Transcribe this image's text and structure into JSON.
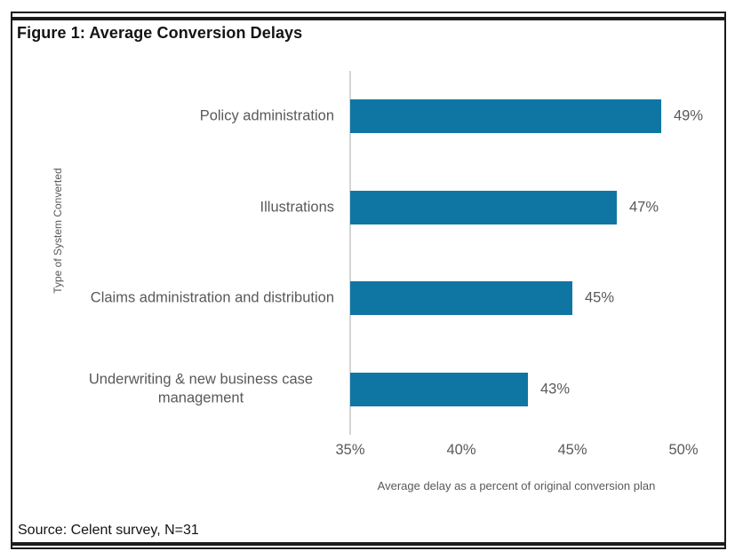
{
  "figure": {
    "title": "Figure 1: Average Conversion Delays",
    "source": "Source: Celent survey, N=31"
  },
  "chart_data": {
    "type": "bar",
    "orientation": "horizontal",
    "title": "Figure 1: Average Conversion Delays",
    "categories": [
      "Policy administration",
      "Illustrations",
      "Claims administration and distribution",
      "Underwriting & new business case management"
    ],
    "values": [
      49,
      47,
      45,
      43
    ],
    "value_labels": [
      "49%",
      "47%",
      "45%",
      "43%"
    ],
    "xlabel": "Average delay as a percent of original conversion plan",
    "ylabel": "Type of System Converted",
    "xlim": [
      35,
      50
    ],
    "xticks": [
      35,
      40,
      45,
      50
    ],
    "xtick_labels": [
      "35%",
      "40%",
      "45%",
      "50%"
    ],
    "grid": false,
    "legend": false,
    "colors": {
      "bar": "#0f76a3",
      "axis_line": "#d6d6d6",
      "label_gray": "#595959",
      "rule_black": "#1b1b1b"
    },
    "source_note": "Source: Celent survey, N=31"
  }
}
